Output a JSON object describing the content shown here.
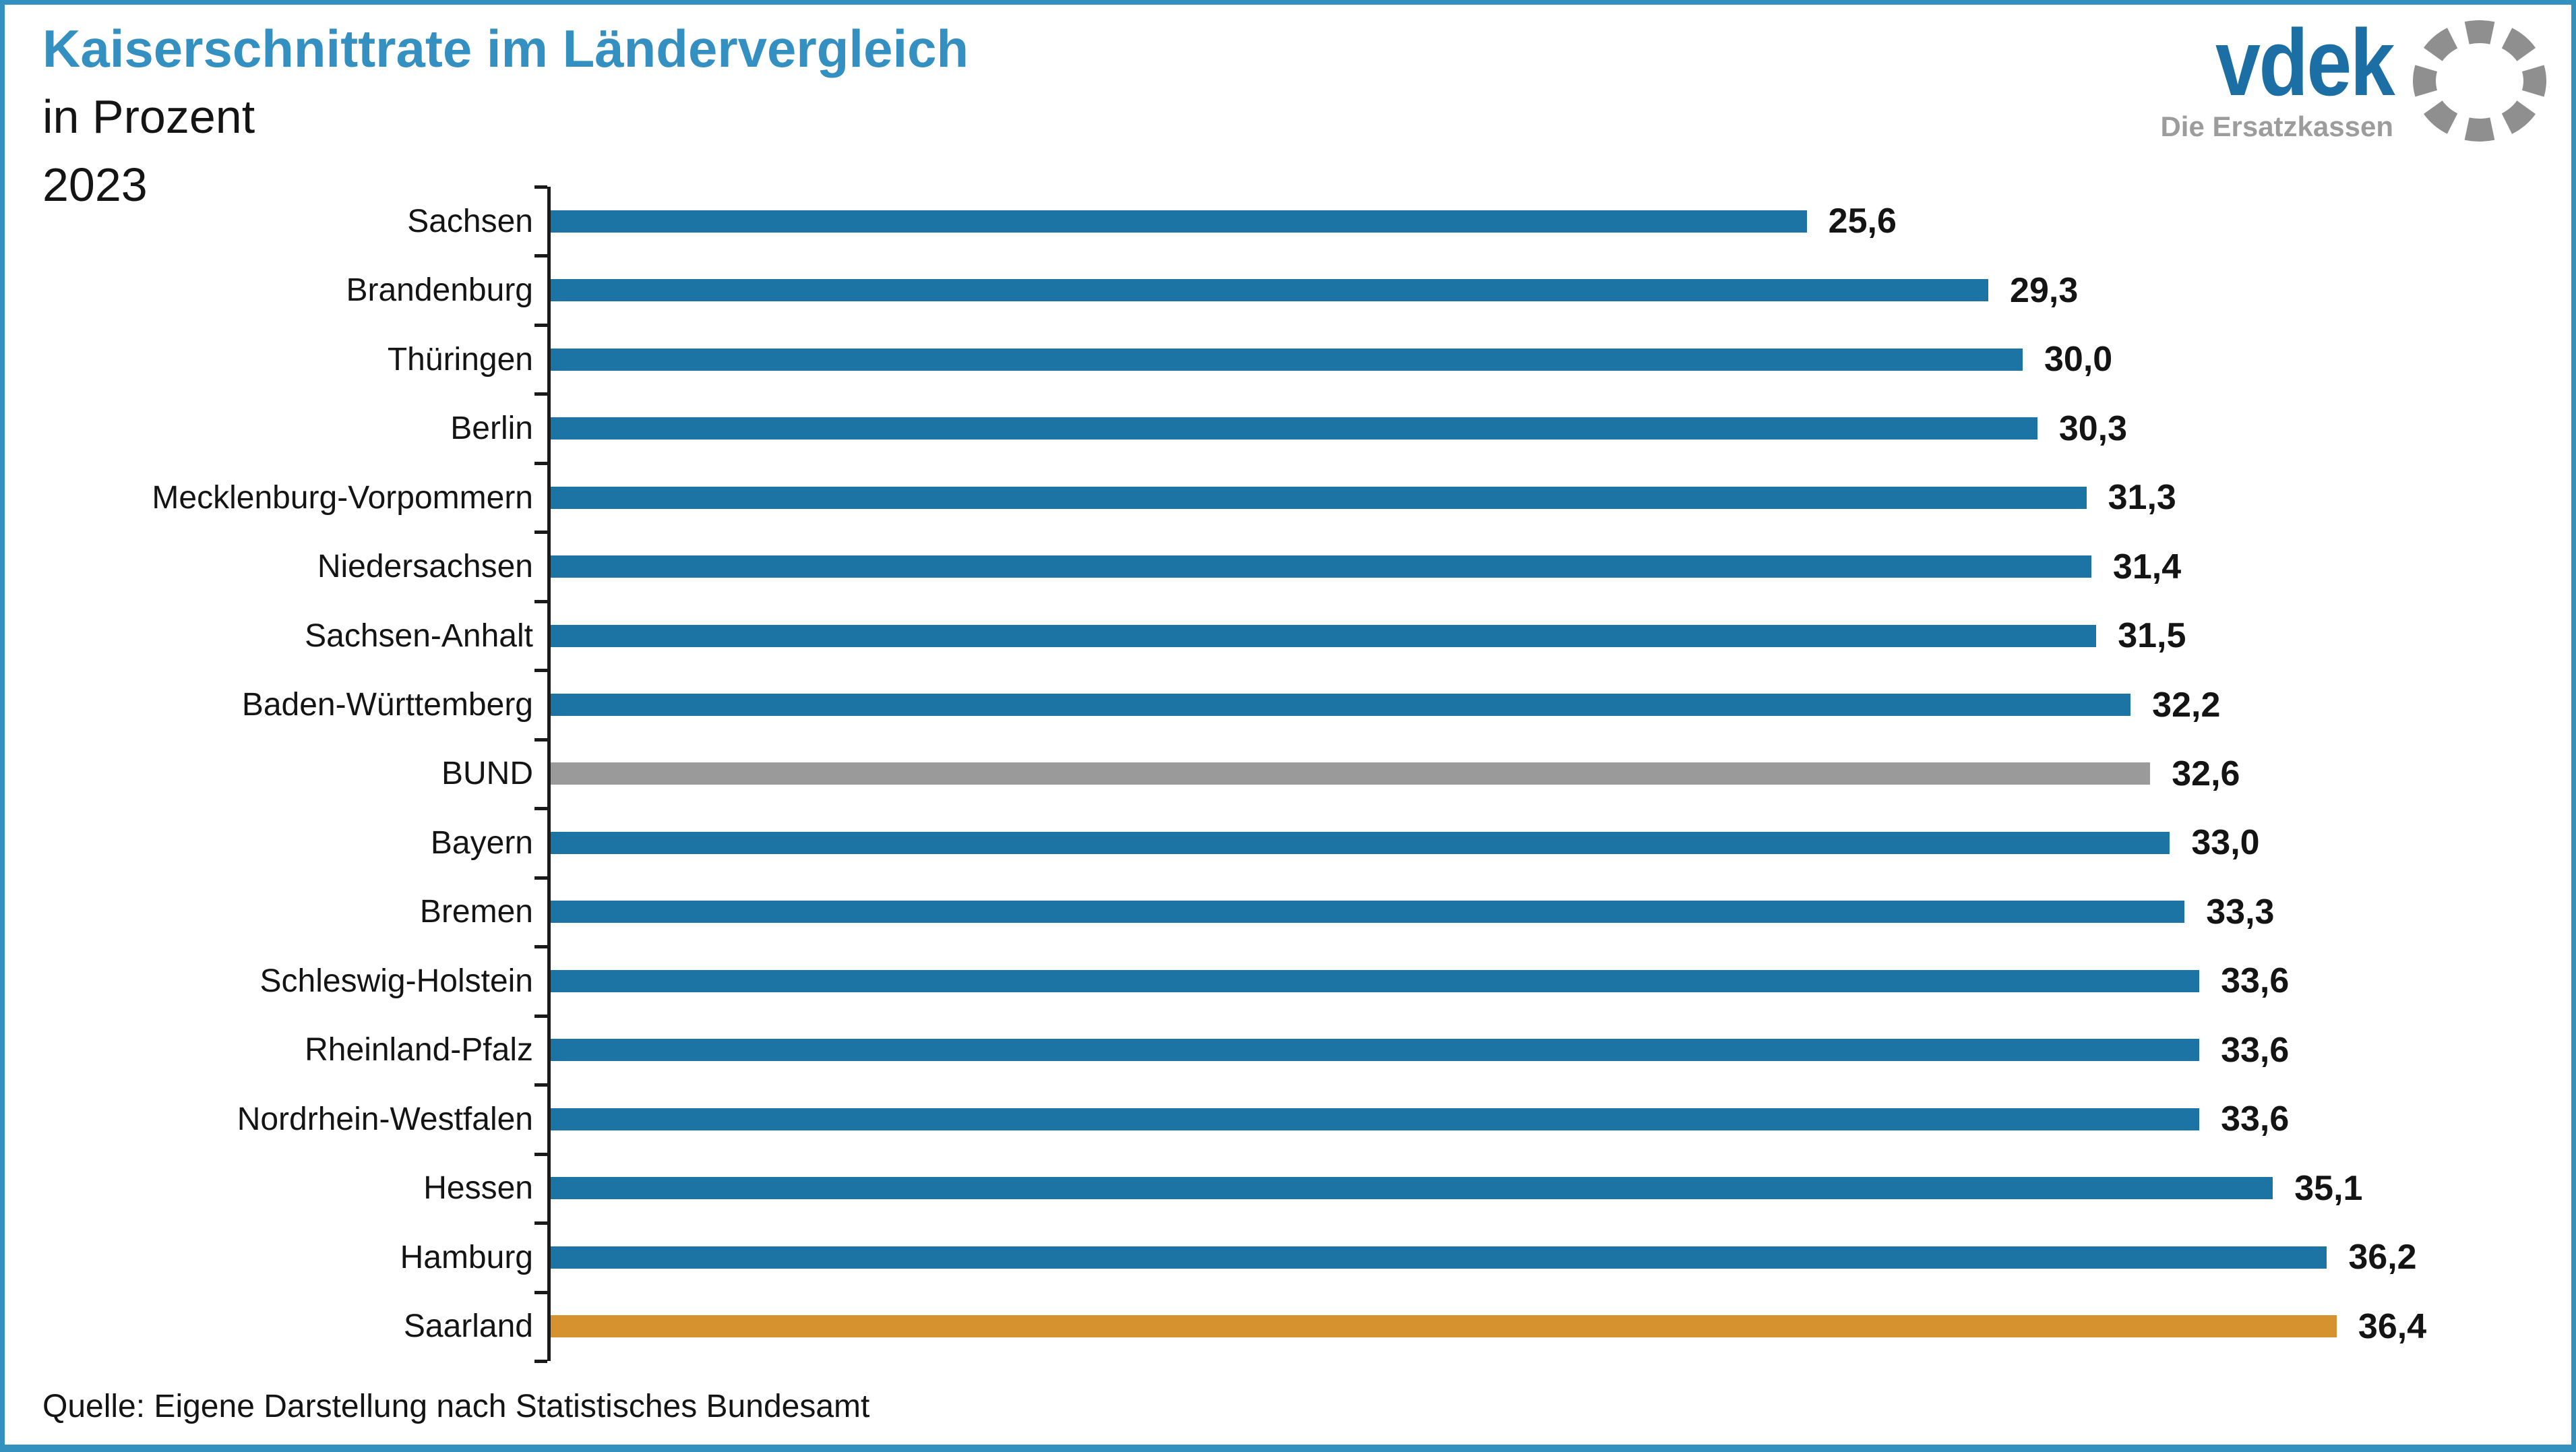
{
  "header": {
    "title": "Kaiserschnittrate im Ländervergleich",
    "subtitle": "in Prozent",
    "year": "2023"
  },
  "logo": {
    "word": "vdek",
    "tagline": "Die Ersatzkassen"
  },
  "source": "Quelle: Eigene Darstellung nach Statistisches Bundesamt",
  "colors": {
    "state_bar": "#1B74A3",
    "bund_bar": "#9A9A9A",
    "highlight_bar": "#D6922F",
    "title_blue": "#3590C2",
    "border_blue": "#3390BF",
    "axis_black": "#1A1A1A",
    "logo_blue": "#1C6FA4",
    "logo_gray": "#9C9C9C"
  },
  "chart_data": {
    "type": "bar",
    "orientation": "horizontal",
    "title": "Kaiserschnittrate im Ländervergleich",
    "subtitle": "in Prozent",
    "year": "2023",
    "unit": "Prozent",
    "xlim": [
      0,
      40
    ],
    "grid": false,
    "legend": false,
    "value_labels_position": "right-of-bar",
    "categories": [
      "Sachsen",
      "Brandenburg",
      "Thüringen",
      "Berlin",
      "Mecklenburg-Vorpommern",
      "Niedersachsen",
      "Sachsen-Anhalt",
      "Baden-Württemberg",
      "BUND",
      "Bayern",
      "Bremen",
      "Schleswig-Holstein",
      "Rheinland-Pfalz",
      "Nordrhein-Westfalen",
      "Hessen",
      "Hamburg",
      "Saarland"
    ],
    "values": [
      25.6,
      29.3,
      30.0,
      30.3,
      31.3,
      31.4,
      31.5,
      32.2,
      32.6,
      33.0,
      33.3,
      33.6,
      33.6,
      33.6,
      35.1,
      36.2,
      36.4
    ],
    "value_labels": [
      "25,6",
      "29,3",
      "30,0",
      "30,3",
      "31,3",
      "31,4",
      "31,5",
      "32,2",
      "32,6",
      "33,0",
      "33,3",
      "33,6",
      "33,6",
      "33,6",
      "35,1",
      "36,2",
      "36,4"
    ],
    "bar_color_keys": [
      "state_bar",
      "state_bar",
      "state_bar",
      "state_bar",
      "state_bar",
      "state_bar",
      "state_bar",
      "state_bar",
      "bund_bar",
      "state_bar",
      "state_bar",
      "state_bar",
      "state_bar",
      "state_bar",
      "state_bar",
      "state_bar",
      "highlight_bar"
    ]
  }
}
